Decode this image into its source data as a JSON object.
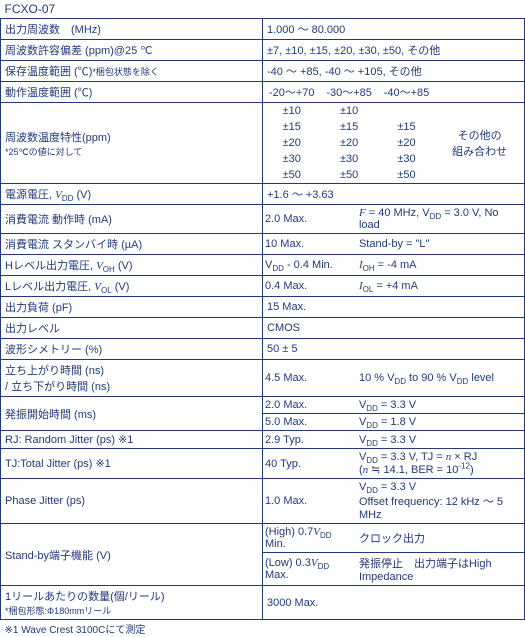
{
  "title": "FCXO-07",
  "rows": {
    "freq": {
      "label": "出力周波数　(MHz)",
      "val": "1.000 ～ 80.000"
    },
    "tol": {
      "label": "周波数許容偏差 (ppm)@25 ℃",
      "val": "±7, ±10, ±15, ±20, ±30, ±50, その他"
    },
    "stor": {
      "label": "保存温度範囲 (℃)",
      "note": "*梱包状態を除く",
      "val": "-40 ～ +85, -40 ～ +105, その他"
    },
    "oper": {
      "label": "動作温度範囲 (℃)",
      "c1": "-20～+70",
      "c2": "-30～+85",
      "c3": "-40～+85"
    },
    "tc": {
      "label": "周波数温度特性(ppm)",
      "note": "*25℃の値に対して",
      "col1": [
        "±10",
        "±15",
        "±20",
        "±30",
        "±50"
      ],
      "col2": [
        "±10",
        "±15",
        "±20",
        "±30",
        "±50"
      ],
      "col3": [
        "",
        "±15",
        "±20",
        "±30",
        "±50"
      ],
      "other": "その他の\n組み合わせ"
    },
    "vdd": {
      "label_html": "電源電圧, <span class='it'>V</span><sub>DD</sub> (V)",
      "val": "+1.6 ～ +3.63"
    },
    "icc": {
      "label": "消費電流 動作時 (mA)",
      "val": "2.0 Max.",
      "cond_html": "<span class='it'>F</span> = 40 MHz, V<sub>DD</sub> = 3.0 V, No load"
    },
    "istby": {
      "label": "消費電流 スタンバイ時 (µA)",
      "val": "10 Max.",
      "cond": "Stand-by = \"L\""
    },
    "voh": {
      "label_html": "Hレベル出力電圧, <span class='it'>V</span><sub>OH</sub> (V)",
      "val_html": "V<sub>DD</sub> - 0.4 Min.",
      "cond_html": "<span class='it'>I</span><sub>OH</sub> = -4 mA"
    },
    "vol": {
      "label_html": "Lレベル出力電圧, <span class='it'>V</span><sub>OL</sub> (V)",
      "val": "0.4 Max.",
      "cond_html": "<span class='it'>I</span><sub>OL</sub> = +4 mA"
    },
    "load": {
      "label": "出力負荷 (pF)",
      "val": "15 Max."
    },
    "outlvl": {
      "label": "出力レベル",
      "val": "CMOS"
    },
    "sym": {
      "label": "波形シメトリー (%)",
      "val": "50 ± 5"
    },
    "trf": {
      "label": "立ち上がり時間 (ns)\n/ 立ち下がり時間 (ns)",
      "val": "4.5 Max.",
      "cond_html": "10 % V<sub>DD</sub> to 90 % V<sub>DD</sub> level"
    },
    "start": {
      "label": "発振開始時間 (ms)",
      "r1": {
        "val": "2.0 Max.",
        "cond_html": "V<sub>DD</sub> = 3.3 V"
      },
      "r2": {
        "val": "5.0 Max.",
        "cond_html": "V<sub>DD</sub> = 1.8 V"
      }
    },
    "rj": {
      "label": "RJ: Random Jitter (ps) ※1",
      "val": "2.9 Typ.",
      "cond_html": "V<sub>DD</sub> = 3.3 V"
    },
    "tj": {
      "label": "TJ:Total Jitter (ps) ※1",
      "val": "40 Typ.",
      "cond_html": "V<sub>DD</sub> = 3.3 V, TJ = <span class='it'>n</span> × RJ<br>(<span class='it'>n</span> ≒ 14.1, BER = 10<sup>-12</sup>)"
    },
    "pj": {
      "label": "Phase Jitter (ps)",
      "val": "1.0 Max.",
      "cond_html": "V<sub>DD</sub> = 3.3 V<br>Offset frequency: 12 kHz ～ 5 MHz"
    },
    "stby": {
      "label": "Stand-by端子機能 (V)",
      "r1": {
        "val_html": "(High) 0.7<span class='it'>V</span><sub>DD</sub> Min.",
        "cond": "クロック出力"
      },
      "r2": {
        "val_html": "(Low) 0.3<span class='it'>V</span><sub>DD</sub> Max.",
        "cond": "発振停止　出力端子はHigh Impedance"
      }
    },
    "reel": {
      "label": "1リールあたりの数量(個/リール)",
      "note": "*梱包形態:Φ180mmリール",
      "val": "3000 Max."
    }
  },
  "footnote": "※1 Wave Crest 3100Cにて測定"
}
